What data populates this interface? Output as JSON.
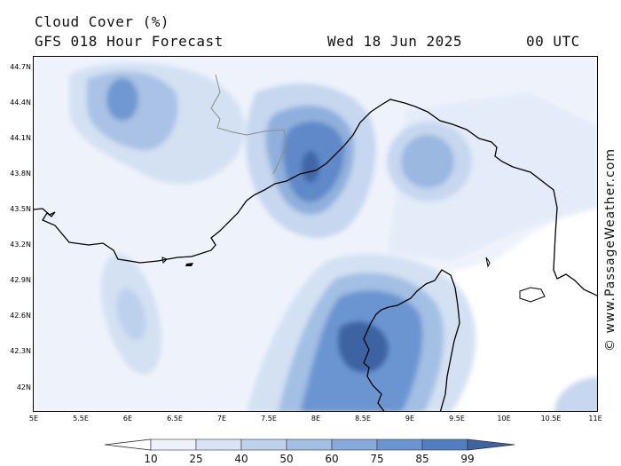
{
  "header": {
    "title": "Cloud Cover (%)",
    "subtitle": "GFS 018 Hour Forecast",
    "date": "Wed 18 Jun 2025",
    "time": "00 UTC"
  },
  "credit": "© www.PassageWeather.com",
  "map": {
    "y_ticks": [
      "44.7N",
      "44.4N",
      "44.1N",
      "43.8N",
      "43.5N",
      "43.2N",
      "42.9N",
      "42.6N",
      "42.3N",
      "42N"
    ],
    "x_ticks": [
      "5E",
      "5.5E",
      "6E",
      "6.5E",
      "7E",
      "7.5E",
      "8E",
      "8.5E",
      "9E",
      "9.5E",
      "10E",
      "10.5E",
      "11E"
    ],
    "lat_range": [
      41.8,
      44.8
    ],
    "lon_range": [
      5.0,
      11.0
    ],
    "colors": {
      "coast": "#000000",
      "border": "#8c8c8c",
      "levels": [
        "#eef3fb",
        "#d8e4f4",
        "#bfd2ec",
        "#a3bfe3",
        "#86aadb",
        "#6a95d1",
        "#4f7ec2",
        "#3c64a3"
      ]
    }
  },
  "legend": {
    "labels": [
      "10",
      "25",
      "40",
      "50",
      "60",
      "75",
      "85",
      "99"
    ]
  }
}
